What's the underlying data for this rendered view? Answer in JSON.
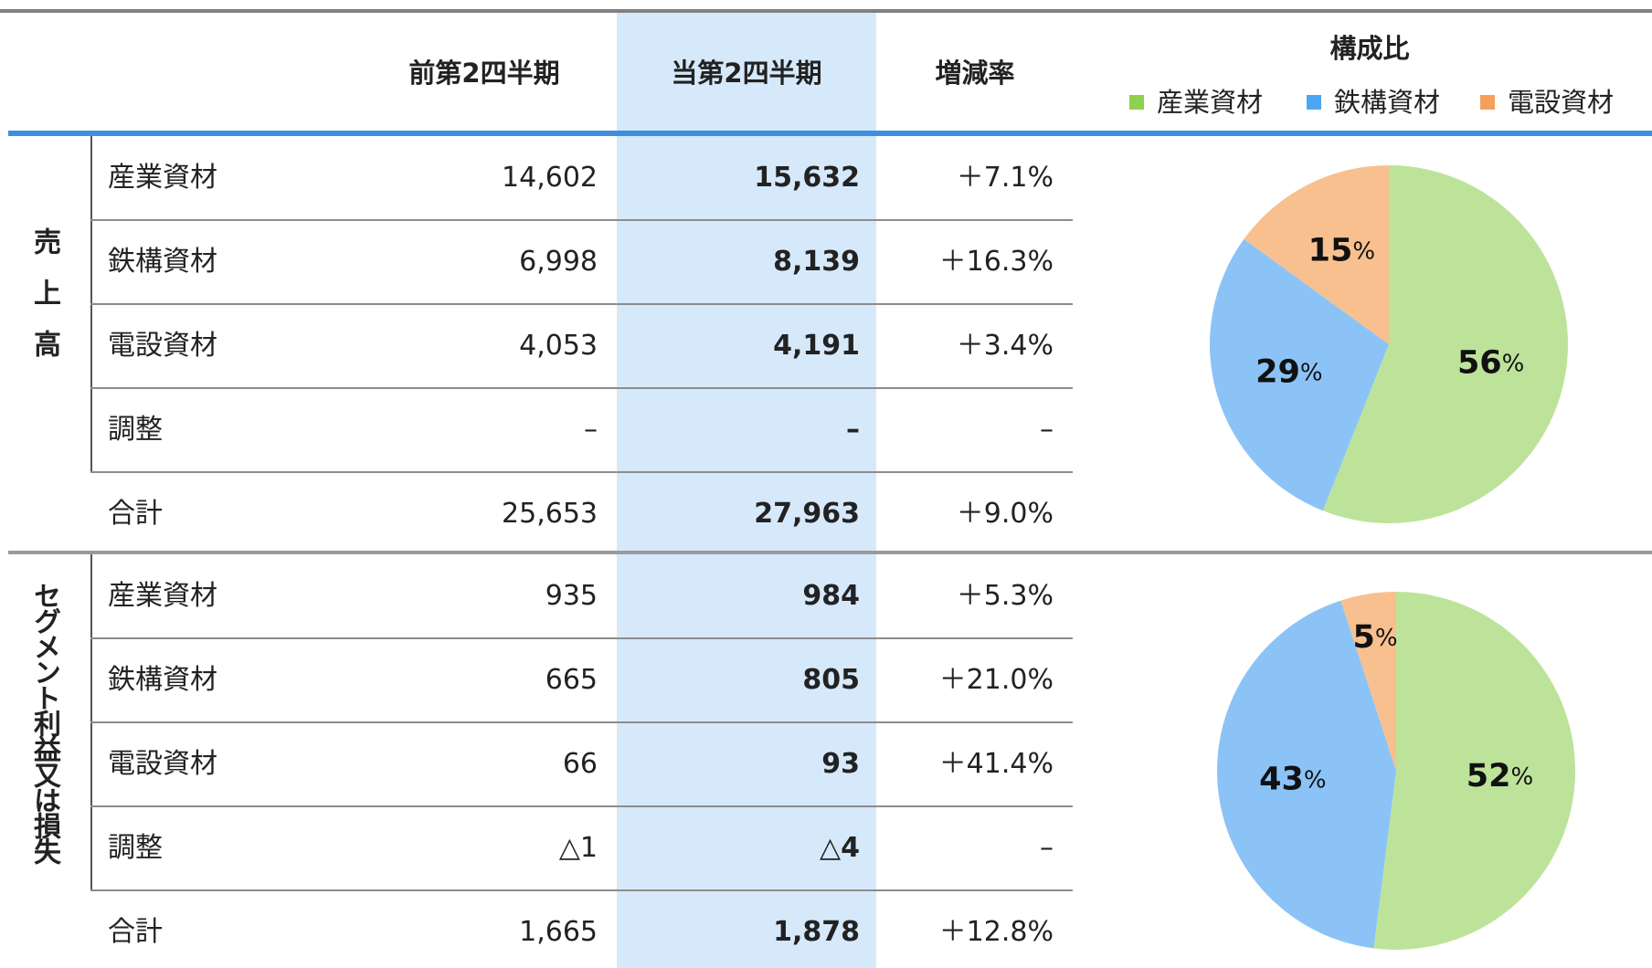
{
  "header": {
    "columns": [
      "前第2四半期",
      "当第2四半期",
      "増減率"
    ],
    "composition_title": "構成比",
    "legend": [
      {
        "name": "産業資材",
        "color": "#8fd14f"
      },
      {
        "name": "鉄構資材",
        "color": "#4da6f5"
      },
      {
        "name": "電設資材",
        "color": "#f5a05a"
      }
    ]
  },
  "sections": [
    {
      "label": "売上高",
      "rows": [
        [
          "産業資材",
          "14,602",
          "15,632",
          "＋7.1%"
        ],
        [
          "鉄構資材",
          "6,998",
          "8,139",
          "＋16.3%"
        ],
        [
          "電設資材",
          "4,053",
          "4,191",
          "＋3.4%"
        ],
        [
          "調整",
          "–",
          "–",
          "–"
        ],
        [
          "合計",
          "25,653",
          "27,963",
          "＋9.0%"
        ]
      ],
      "pie": {
        "values": [
          56,
          29,
          15
        ],
        "unit": "%",
        "colors": [
          "#bde39a",
          "#8bc3f7",
          "#f8c08f"
        ]
      }
    },
    {
      "label": "セグメント利益又は損失",
      "rows": [
        [
          "産業資材",
          "935",
          "984",
          "＋5.3%"
        ],
        [
          "鉄構資材",
          "665",
          "805",
          "＋21.0%"
        ],
        [
          "電設資材",
          "66",
          "93",
          "＋41.4%"
        ],
        [
          "調整",
          "△1",
          "△4",
          "–"
        ],
        [
          "合計",
          "1,665",
          "1,878",
          "＋12.8%"
        ]
      ],
      "pie": {
        "values": [
          52,
          43,
          5
        ],
        "unit": "%",
        "colors": [
          "#bde39a",
          "#8bc3f7",
          "#f8c08f"
        ]
      }
    }
  ]
}
